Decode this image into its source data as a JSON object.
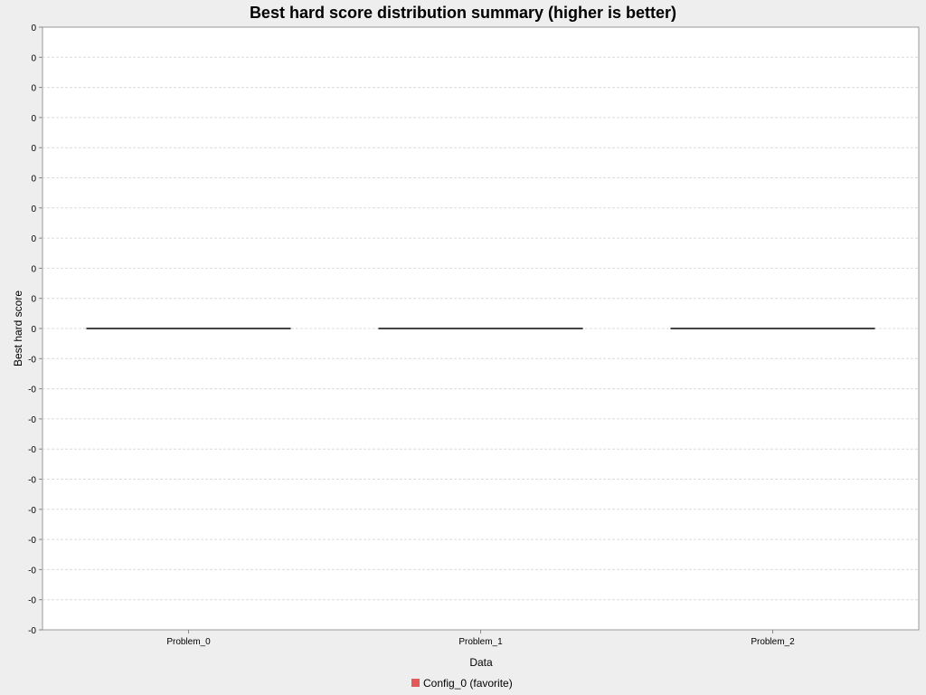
{
  "chart_data": {
    "type": "box",
    "title": "Best hard score distribution summary (higher is better)",
    "xlabel": "Data",
    "ylabel": "Best hard score",
    "categories": [
      "Problem_0",
      "Problem_1",
      "Problem_2"
    ],
    "series": [
      {
        "name": "Config_0 (favorite)",
        "color": "#e05a5a",
        "values": [
          0,
          0,
          0
        ]
      }
    ],
    "ylim": [
      -0.5,
      0.5
    ],
    "y_ticks": [
      {
        "value": 0.5,
        "label": "0"
      },
      {
        "value": 0.45,
        "label": "0"
      },
      {
        "value": 0.4,
        "label": "0"
      },
      {
        "value": 0.35,
        "label": "0"
      },
      {
        "value": 0.3,
        "label": "0"
      },
      {
        "value": 0.25,
        "label": "0"
      },
      {
        "value": 0.2,
        "label": "0"
      },
      {
        "value": 0.15,
        "label": "0"
      },
      {
        "value": 0.1,
        "label": "0"
      },
      {
        "value": 0.05,
        "label": "0"
      },
      {
        "value": 0.0,
        "label": "0"
      },
      {
        "value": -0.05,
        "label": "-0"
      },
      {
        "value": -0.1,
        "label": "-0"
      },
      {
        "value": -0.15,
        "label": "-0"
      },
      {
        "value": -0.2,
        "label": "-0"
      },
      {
        "value": -0.25,
        "label": "-0"
      },
      {
        "value": -0.3,
        "label": "-0"
      },
      {
        "value": -0.35,
        "label": "-0"
      },
      {
        "value": -0.4,
        "label": "-0"
      },
      {
        "value": -0.45,
        "label": "-0"
      },
      {
        "value": -0.5,
        "label": "-0"
      }
    ],
    "grid": true,
    "legend_position": "bottom-center"
  }
}
